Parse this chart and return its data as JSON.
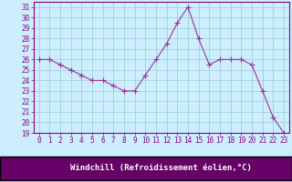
{
  "x": [
    0,
    1,
    2,
    3,
    4,
    5,
    6,
    7,
    8,
    9,
    10,
    11,
    12,
    13,
    14,
    15,
    16,
    17,
    18,
    19,
    20,
    21,
    22,
    23
  ],
  "y": [
    26.0,
    26.0,
    25.5,
    25.0,
    24.5,
    24.0,
    24.0,
    23.5,
    23.0,
    23.0,
    24.5,
    26.0,
    27.5,
    29.5,
    31.0,
    28.0,
    25.5,
    26.0,
    26.0,
    26.0,
    25.5,
    23.0,
    20.5,
    19.0
  ],
  "line_color": "#993399",
  "marker": "+",
  "marker_size": 4,
  "xlabel": "Windchill (Refroidissement éolien,°C)",
  "xlim": [
    -0.5,
    23.5
  ],
  "ylim": [
    19,
    31.5
  ],
  "yticks": [
    19,
    20,
    21,
    22,
    23,
    24,
    25,
    26,
    27,
    28,
    29,
    30,
    31
  ],
  "xticks": [
    0,
    1,
    2,
    3,
    4,
    5,
    6,
    7,
    8,
    9,
    10,
    11,
    12,
    13,
    14,
    15,
    16,
    17,
    18,
    19,
    20,
    21,
    22,
    23
  ],
  "bg_color": "#cceeff",
  "grid_color": "#99cccc",
  "tick_fontsize": 5.5,
  "xlabel_fontsize": 6.5,
  "label_color": "#880088",
  "spine_color": "#880088",
  "bottom_bar_color": "#660066",
  "linewidth": 0.8,
  "markeredgewidth": 0.8
}
